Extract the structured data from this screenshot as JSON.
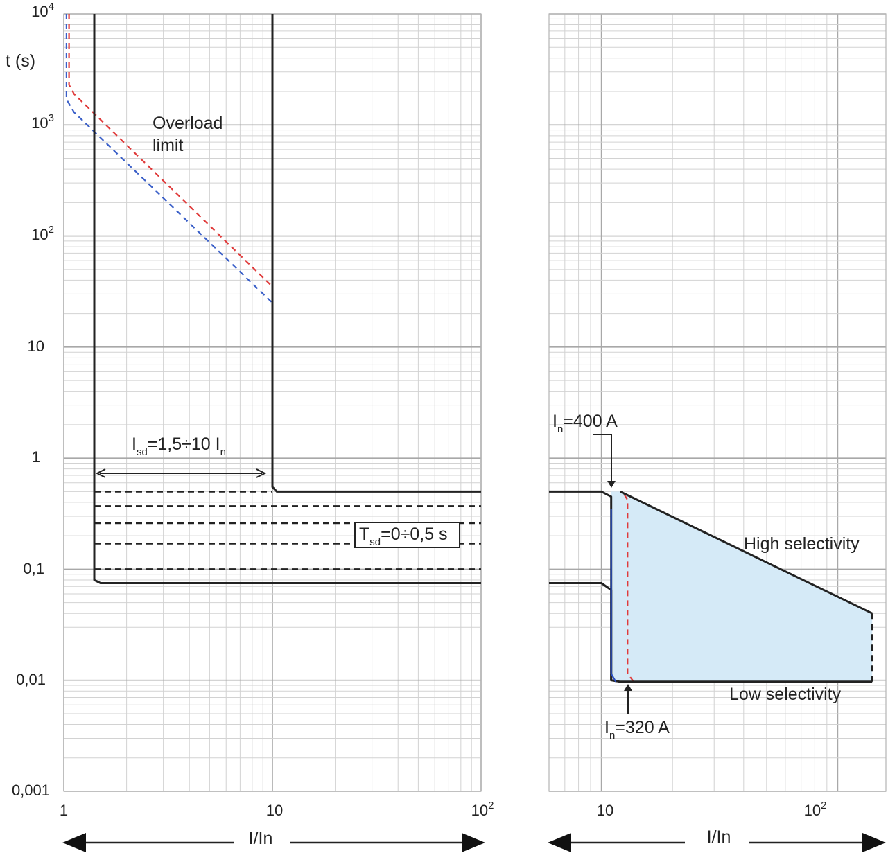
{
  "chart_data": {
    "type": "line",
    "yscale": "log",
    "xscale": "log",
    "ylabel": "t (s)",
    "ylim": [
      0.001,
      10000
    ],
    "y_ticks": [
      {
        "value": 10000,
        "base": "10",
        "exp": "4"
      },
      {
        "value": 1000,
        "base": "10",
        "exp": "3"
      },
      {
        "value": 100,
        "base": "10",
        "exp": "2"
      },
      {
        "value": 10,
        "base": "10",
        "exp": ""
      },
      {
        "value": 1,
        "base": "1",
        "exp": ""
      },
      {
        "value": 0.1,
        "base": "0,1",
        "exp": ""
      },
      {
        "value": 0.01,
        "base": "0,01",
        "exp": ""
      },
      {
        "value": 0.001,
        "base": "0,001",
        "exp": ""
      }
    ],
    "grid": true,
    "left_panel": {
      "xlabel": "I/In",
      "xlim": [
        1,
        100
      ],
      "x_ticks": [
        {
          "value": 1,
          "base": "1",
          "exp": ""
        },
        {
          "value": 10,
          "base": "10",
          "exp": ""
        },
        {
          "value": 100,
          "base": "10",
          "exp": "2"
        }
      ],
      "series": [
        {
          "style": "dashed",
          "color": "#e03a3a",
          "points": [
            [
              1.06,
              10000
            ],
            [
              1.06,
              2300
            ],
            [
              1.12,
              1900
            ],
            [
              10,
              35
            ],
            [
              10,
              1
            ]
          ]
        },
        {
          "style": "dashed",
          "color": "#3a5fc8",
          "points": [
            [
              1.03,
              10000
            ],
            [
              1.03,
              1700
            ],
            [
              1.12,
              1300
            ],
            [
              10,
              25
            ],
            [
              10,
              1
            ]
          ]
        },
        {
          "style": "solid",
          "color": "#222222",
          "points": [
            [
              1.4,
              10000
            ],
            [
              1.4,
              0.08
            ],
            [
              1.5,
              0.075
            ],
            [
              100,
              0.075
            ]
          ]
        },
        {
          "style": "solid",
          "color": "#222222",
          "points": [
            [
              10,
              10000
            ],
            [
              10,
              0.55
            ],
            [
              10.5,
              0.5
            ],
            [
              100,
              0.5
            ]
          ]
        },
        {
          "style": "dashed",
          "color": "#222222",
          "points": [
            [
              1.4,
              0.5
            ],
            [
              10,
              0.5
            ]
          ]
        },
        {
          "style": "dashed",
          "color": "#222222",
          "points": [
            [
              1.4,
              0.37
            ],
            [
              100,
              0.37
            ]
          ]
        },
        {
          "style": "dashed",
          "color": "#222222",
          "points": [
            [
              1.4,
              0.26
            ],
            [
              100,
              0.26
            ]
          ]
        },
        {
          "style": "dashed",
          "color": "#222222",
          "points": [
            [
              1.4,
              0.17
            ],
            [
              100,
              0.17
            ]
          ]
        },
        {
          "style": "dashed",
          "color": "#222222",
          "points": [
            [
              1.4,
              0.1
            ],
            [
              100,
              0.1
            ]
          ]
        }
      ],
      "annotations": [
        {
          "line1": "Overload",
          "line2": "limit"
        },
        {
          "prefix": "I",
          "sub": "sd",
          "middle": "=1,5÷10 I",
          "sub2": "n"
        },
        {
          "prefix": "T",
          "sub": "sd",
          "middle": "=0÷0,5 s"
        }
      ]
    },
    "right_panel": {
      "xlabel": "I/In",
      "xlim": [
        6,
        160
      ],
      "x_ticks": [
        {
          "value": 10,
          "base": "10",
          "exp": ""
        },
        {
          "value": 100,
          "base": "10",
          "exp": "2"
        }
      ],
      "series": [
        {
          "style": "solid",
          "color": "#222222",
          "points": [
            [
              6,
              0.5
            ],
            [
              10,
              0.5
            ],
            [
              11,
              0.45
            ],
            [
              11,
              0.01
            ],
            [
              12,
              0.0097
            ]
          ]
        },
        {
          "style": "solid",
          "color": "#222222",
          "points": [
            [
              6,
              0.075
            ],
            [
              10,
              0.075
            ],
            [
              11,
              0.065
            ],
            [
              11,
              0.01
            ]
          ]
        },
        {
          "style": "solid",
          "color": "#2a50c0",
          "points": [
            [
              11,
              0.35
            ],
            [
              11,
              0.0115
            ],
            [
              11.5,
              0.0097
            ]
          ]
        },
        {
          "style": "dashed",
          "color": "#e03a3a",
          "points": [
            [
              12.5,
              0.47
            ],
            [
              12.9,
              0.42
            ],
            [
              12.9,
              0.0115
            ],
            [
              13.7,
              0.0097
            ]
          ]
        },
        {
          "style": "solid",
          "color": "#222222",
          "points": [
            [
              12,
              0.5
            ],
            [
              140,
              0.04
            ]
          ]
        },
        {
          "style": "solid",
          "color": "#222222",
          "points": [
            [
              12,
              0.0097
            ],
            [
              140,
              0.0097
            ]
          ]
        },
        {
          "style": "dashed",
          "color": "#222222",
          "points": [
            [
              140,
              0.04
            ],
            [
              140,
              0.0097
            ]
          ]
        }
      ],
      "annotations": [
        {
          "label": "High selectivity"
        },
        {
          "label": "Low selectivity"
        },
        {
          "prefix": "I",
          "sub": "n",
          "middle": "=400 A"
        },
        {
          "prefix": "I",
          "sub": "n",
          "middle": "=320 A"
        }
      ]
    }
  }
}
